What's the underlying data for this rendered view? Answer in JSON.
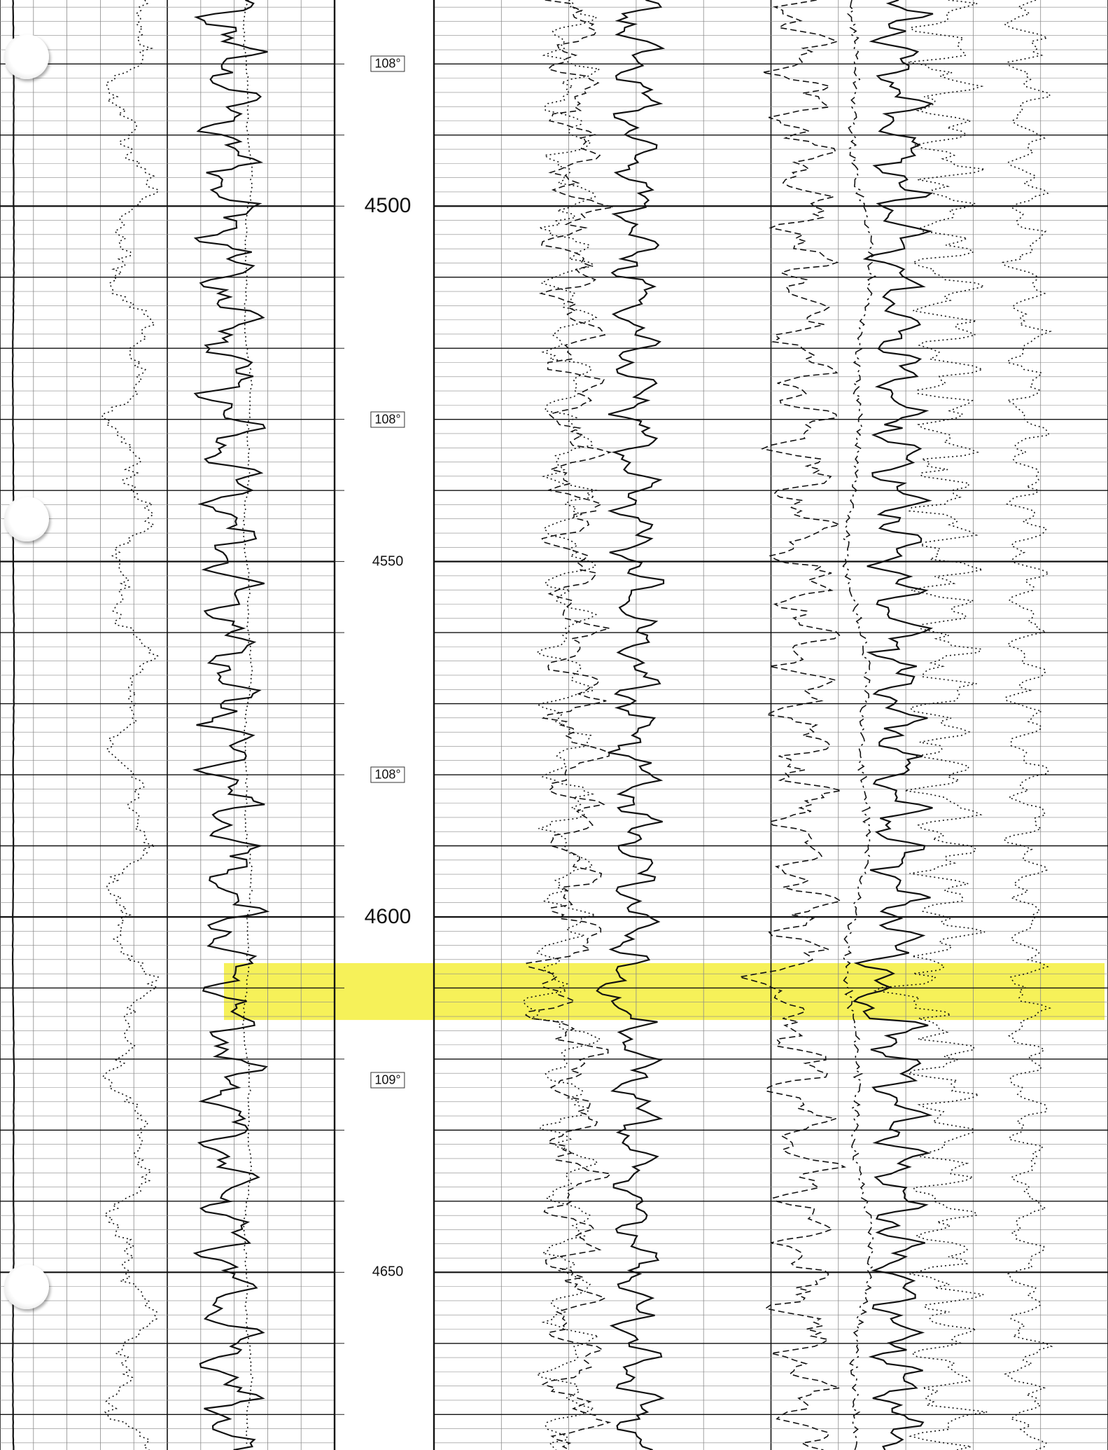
{
  "chart_data": {
    "type": "line",
    "title": "",
    "xlabel": "",
    "ylabel": "",
    "depth_range": [
      4471,
      4675
    ],
    "depth_labels": [
      {
        "depth": 4500,
        "text": "4500",
        "size": "major"
      },
      {
        "depth": 4550,
        "text": "4550",
        "size": "minor"
      },
      {
        "depth": 4600,
        "text": "4600",
        "size": "major"
      },
      {
        "depth": 4650,
        "text": "4650",
        "size": "minor"
      }
    ],
    "temperature_labels": [
      {
        "depth": 4480,
        "text": "108°"
      },
      {
        "depth": 4530,
        "text": "108°"
      },
      {
        "depth": 4580,
        "text": "108°"
      },
      {
        "depth": 4623,
        "text": "109°"
      }
    ],
    "highlighted_interval": [
      4606.5,
      4614.5
    ],
    "grid": true,
    "colors": {
      "grid_major": "#111111",
      "grid_minor": "#8a8a8a",
      "curve": "#111111",
      "highlight": "#f4ee3c"
    },
    "hole_punch_depths": [
      4479,
      4544,
      4652
    ],
    "series": [
      {
        "track": "left",
        "style": "solid",
        "center": 0.04,
        "amp": 0.002,
        "freq": 1
      },
      {
        "track": "left",
        "style": "dotted",
        "center": 0.39,
        "amp": 0.07,
        "freq": 3
      },
      {
        "track": "left",
        "style": "solid",
        "center": 0.69,
        "amp": 0.09,
        "freq": 9
      },
      {
        "track": "left",
        "style": "dotted",
        "center": 0.74,
        "amp": 0.012,
        "freq": 2
      },
      {
        "track": "right",
        "style": "dashed",
        "center": 0.21,
        "amp": 0.045,
        "freq": 8
      },
      {
        "track": "right",
        "style": "dotted",
        "center": 0.2,
        "amp": 0.04,
        "freq": 8
      },
      {
        "track": "right",
        "style": "solid",
        "center": 0.3,
        "amp": 0.035,
        "freq": 10
      },
      {
        "track": "right",
        "style": "dashed",
        "center": 0.55,
        "amp": 0.05,
        "freq": 9
      },
      {
        "track": "right",
        "style": "dashdot",
        "center": 0.63,
        "amp": 0.02,
        "freq": 1
      },
      {
        "track": "right",
        "style": "solid",
        "center": 0.69,
        "amp": 0.04,
        "freq": 11
      },
      {
        "track": "right",
        "style": "dotted",
        "center": 0.76,
        "amp": 0.05,
        "freq": 12
      },
      {
        "track": "right",
        "style": "dotted",
        "center": 0.88,
        "amp": 0.03,
        "freq": 10
      }
    ]
  }
}
